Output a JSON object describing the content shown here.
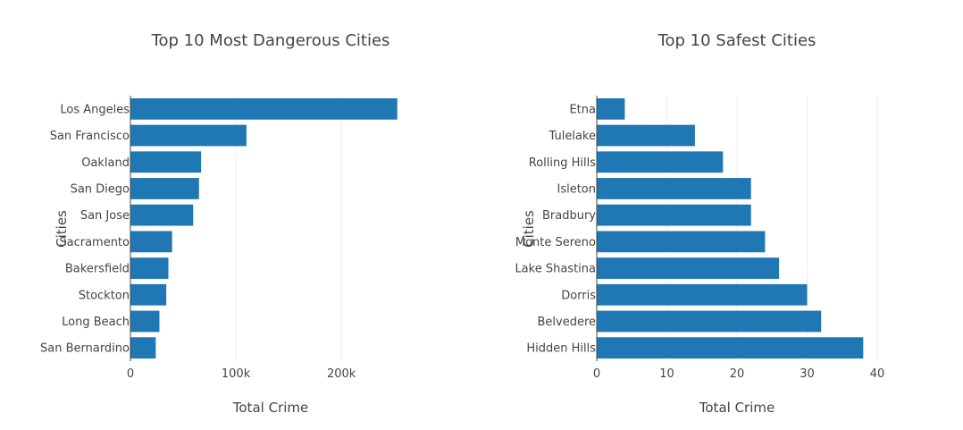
{
  "chart_data": [
    {
      "type": "bar",
      "orientation": "horizontal",
      "title": "Top 10 Most Dangerous Cities",
      "xlabel": "Total Crime",
      "ylabel": "Cities",
      "categories": [
        "Los Angeles",
        "San Francisco",
        "Oakland",
        "San Diego",
        "San Jose",
        "Sacramento",
        "Bakersfield",
        "Stockton",
        "Long Beach",
        "San Bernardino"
      ],
      "values": [
        253000,
        110000,
        67000,
        65000,
        59500,
        39500,
        36000,
        34000,
        27500,
        24000
      ],
      "xlim": [
        0,
        260000
      ],
      "xticks": [
        0,
        100000,
        200000
      ],
      "xtick_labels": [
        "0",
        "100k",
        "200k"
      ],
      "grid": true,
      "color": "#1f77b4"
    },
    {
      "type": "bar",
      "orientation": "horizontal",
      "title": "Top 10 Safest Cities",
      "xlabel": "Total Crime",
      "ylabel": "Cities",
      "categories": [
        "Etna",
        "Tulelake",
        "Rolling Hills",
        "Isleton",
        "Bradbury",
        "Monte Sereno",
        "Lake Shastina",
        "Dorris",
        "Belvedere",
        "Hidden Hills"
      ],
      "values": [
        4,
        14,
        18,
        22,
        22,
        24,
        26,
        30,
        32,
        38
      ],
      "xlim": [
        0,
        40
      ],
      "xticks": [
        0,
        10,
        20,
        30,
        40
      ],
      "xtick_labels": [
        "0",
        "10",
        "20",
        "30",
        "40"
      ],
      "grid": true,
      "color": "#1f77b4"
    }
  ]
}
